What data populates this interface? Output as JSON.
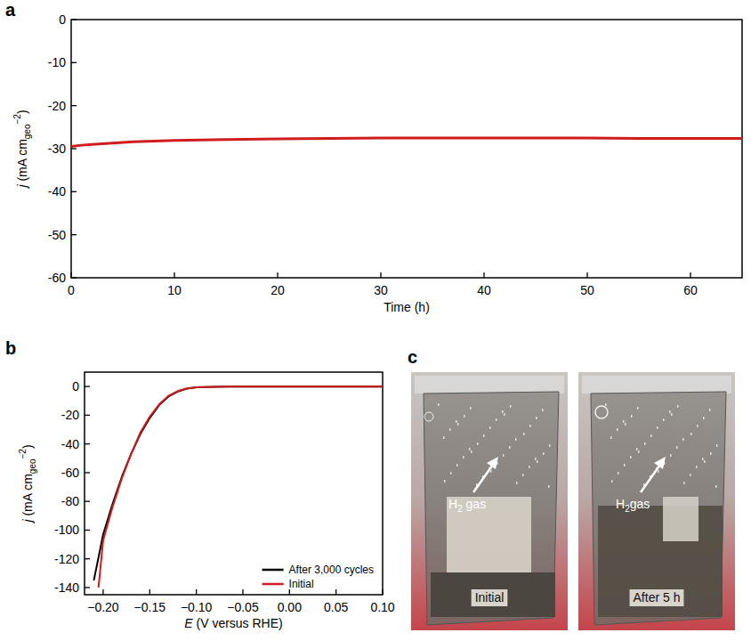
{
  "chart_data": [
    {
      "type": "line",
      "panel": "a",
      "xlabel": "Time (h)",
      "ylabel": {
        "text": "j (mA cm",
        "sub": "geo",
        "sup": "−2",
        "end": ")"
      },
      "x": [
        0,
        1,
        2,
        4,
        6,
        10,
        15,
        20,
        25,
        30,
        35,
        40,
        45,
        50,
        55,
        60,
        65
      ],
      "values": [
        -29.5,
        -29.2,
        -29.0,
        -28.7,
        -28.4,
        -28.1,
        -27.9,
        -27.7,
        -27.6,
        -27.5,
        -27.5,
        -27.5,
        -27.5,
        -27.5,
        -27.6,
        -27.6,
        -27.6
      ],
      "color": "#d01c1c",
      "xlim": [
        0,
        65
      ],
      "xticks": [
        0,
        10,
        20,
        30,
        40,
        50,
        60
      ],
      "ylim": [
        -60,
        0
      ],
      "yticks": [
        -60,
        -50,
        -40,
        -30,
        -20,
        -10,
        0
      ]
    },
    {
      "type": "line",
      "panel": "b",
      "xlabel": "E (V versus RHE)",
      "ylabel": {
        "text": "j (mA cm",
        "sub": "geo",
        "sup": "−2",
        "end": ")"
      },
      "series": [
        {
          "name": "After 3,000 cycles",
          "color": "#000000",
          "x": [
            0.1,
            0.05,
            0,
            -0.05,
            -0.08,
            -0.1,
            -0.11,
            -0.12,
            -0.13,
            -0.14,
            -0.15,
            -0.16,
            -0.17,
            -0.18,
            -0.19,
            -0.2,
            -0.21
          ],
          "values": [
            0,
            0,
            0,
            0,
            -0.2,
            -0.6,
            -1.5,
            -3.5,
            -7,
            -13,
            -22,
            -33,
            -47,
            -63,
            -82,
            -103,
            -135
          ]
        },
        {
          "name": "Initial",
          "color": "#d01c1c",
          "x": [
            0.1,
            0.05,
            0,
            -0.05,
            -0.08,
            -0.1,
            -0.11,
            -0.12,
            -0.13,
            -0.14,
            -0.15,
            -0.16,
            -0.17,
            -0.18,
            -0.19,
            -0.2,
            -0.205
          ],
          "values": [
            0,
            0,
            0,
            0,
            -0.2,
            -0.5,
            -1.3,
            -3.2,
            -6.5,
            -12.5,
            -21,
            -32,
            -47,
            -64,
            -84,
            -107,
            -140
          ]
        }
      ],
      "xlim": [
        -0.22,
        0.1
      ],
      "xticks": [
        {
          "value": -0.2,
          "label": "−0.20"
        },
        {
          "value": -0.15,
          "label": "−0.15"
        },
        {
          "value": -0.1,
          "label": "−0.10"
        },
        {
          "value": -0.05,
          "label": "−0.05"
        },
        {
          "value": 0,
          "label": "0.00"
        },
        {
          "value": 0.05,
          "label": "0.05"
        },
        {
          "value": 0.1,
          "label": "0.10"
        }
      ],
      "ylim": [
        -145,
        10
      ],
      "yticks": [
        -140,
        -120,
        -100,
        -80,
        -60,
        -40,
        -20,
        0
      ],
      "legend": "lower right"
    }
  ],
  "photos": {
    "panel": "c",
    "images": [
      {
        "annotation": {
          "text": "H",
          "sub": "2",
          "end": " gas"
        },
        "caption": "Initial"
      },
      {
        "annotation": {
          "text": "H",
          "sub": "2",
          "end": "gas"
        },
        "caption": "After 5 h"
      }
    ]
  }
}
